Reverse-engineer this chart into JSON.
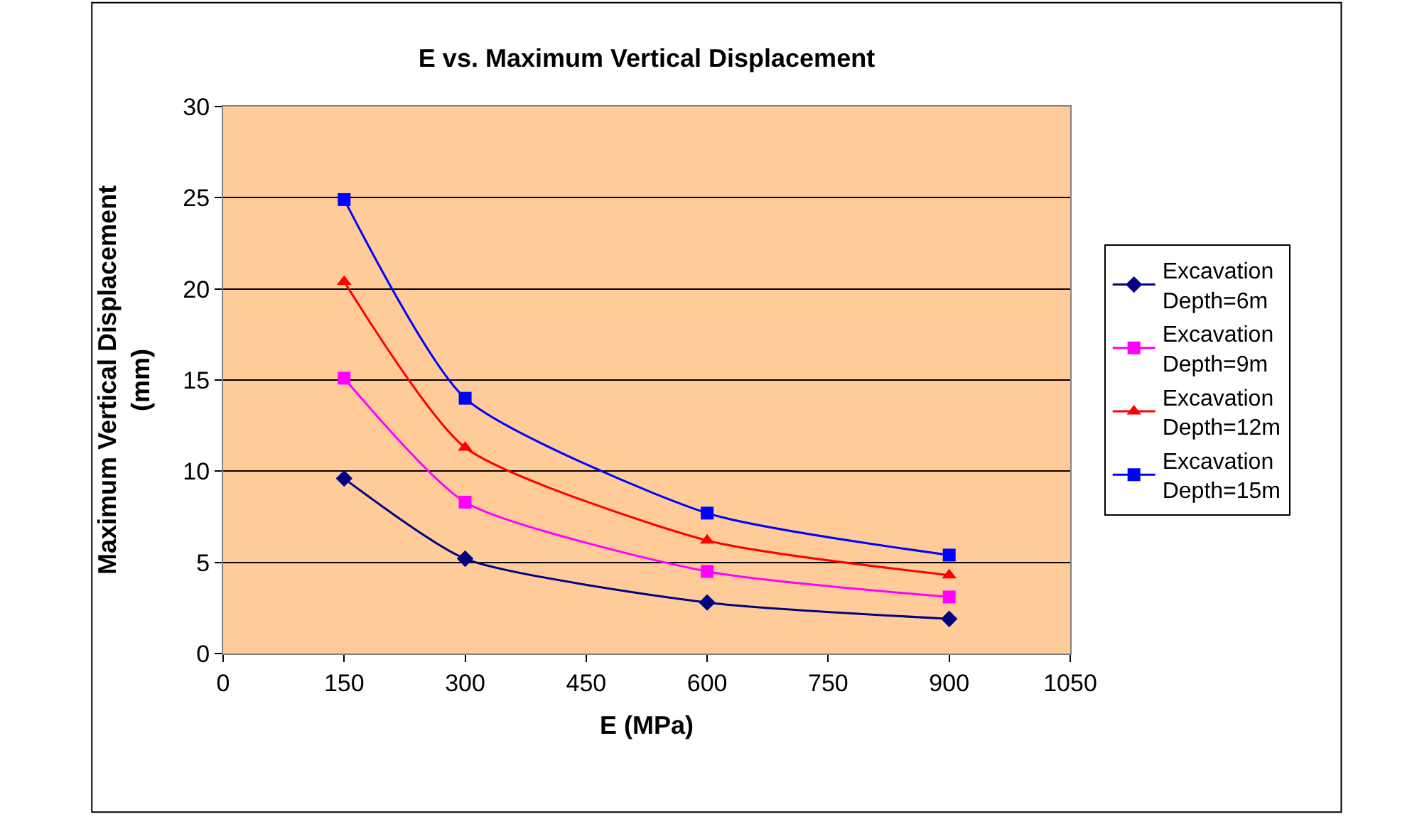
{
  "chart_data": {
    "type": "line",
    "title": "E vs. Maximum Vertical Displacement",
    "xlabel": "E (MPa)",
    "ylabel": "Maximum Vertical Displacement (mm)",
    "x": [
      150,
      300,
      600,
      900
    ],
    "series": [
      {
        "name": "Excavation Depth=6m",
        "color": "#000080",
        "marker": "diamond",
        "values": [
          9.6,
          5.2,
          2.8,
          1.9
        ]
      },
      {
        "name": "Excavation Depth=9m",
        "color": "#ff00ff",
        "marker": "square",
        "values": [
          15.1,
          8.3,
          4.5,
          3.1
        ]
      },
      {
        "name": "Excavation Depth=12m",
        "color": "#ff0000",
        "marker": "triangle",
        "values": [
          20.4,
          11.3,
          6.2,
          4.3
        ]
      },
      {
        "name": "Excavation Depth=15m",
        "color": "#0000ff",
        "marker": "square",
        "values": [
          24.9,
          14.0,
          7.7,
          5.4
        ]
      }
    ],
    "xlim": [
      0,
      1050
    ],
    "xticks": [
      0,
      150,
      300,
      450,
      600,
      750,
      900,
      1050
    ],
    "ylim": [
      0,
      30
    ],
    "yticks": [
      0,
      5,
      10,
      15,
      20,
      25,
      30
    ],
    "grid": "y",
    "legend": "right",
    "line_style": "solid"
  }
}
